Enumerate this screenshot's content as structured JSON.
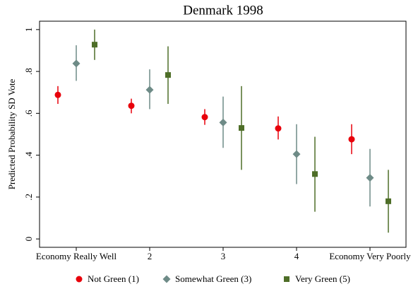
{
  "chart_data": {
    "type": "dot-errorbar",
    "title": "Denmark 1998",
    "y_label": "Predicted Probability SD Vote",
    "categories": [
      "Economy Really Well",
      "2",
      "3",
      "4",
      "Economy Very Poorly"
    ],
    "ylim": [
      -0.04,
      1.04
    ],
    "yticks": [
      {
        "value": 0,
        "label": "0"
      },
      {
        "value": 0.2,
        "label": ".2"
      },
      {
        "value": 0.4,
        "label": ".4"
      },
      {
        "value": 0.6,
        "label": ".6"
      },
      {
        "value": 0.8,
        "label": ".8"
      },
      1
    ],
    "series": [
      {
        "name": "Not Green (1)",
        "color": "#e8000b",
        "marker": "circle",
        "values": [
          0.688,
          0.636,
          0.582,
          0.528,
          0.476
        ],
        "lower": [
          0.645,
          0.6,
          0.545,
          0.475,
          0.405
        ],
        "upper": [
          0.73,
          0.67,
          0.62,
          0.585,
          0.548
        ]
      },
      {
        "name": "Somewhat Green (3)",
        "color": "#6e8b87",
        "marker": "diamond",
        "values": [
          0.838,
          0.712,
          0.556,
          0.405,
          0.292
        ],
        "lower": [
          0.755,
          0.62,
          0.435,
          0.262,
          0.155
        ],
        "upper": [
          0.925,
          0.81,
          0.68,
          0.548,
          0.43
        ]
      },
      {
        "name": "Very Green (5)",
        "color": "#4e6e28",
        "marker": "square",
        "values": [
          0.928,
          0.783,
          0.53,
          0.31,
          0.18
        ],
        "lower": [
          0.855,
          0.645,
          0.33,
          0.13,
          0.03
        ],
        "upper": [
          1.0,
          0.92,
          0.73,
          0.488,
          0.33
        ]
      }
    ],
    "legend": "bottom"
  }
}
